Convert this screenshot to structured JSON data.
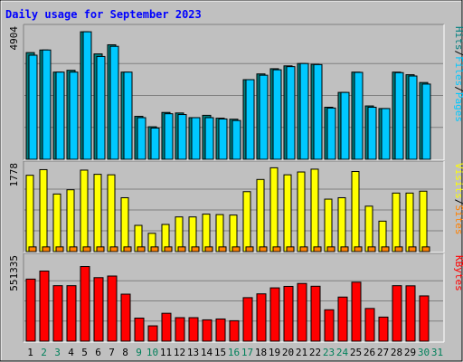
{
  "chart_data": {
    "type": "bar",
    "title": "Daily usage for September 2023",
    "days": [
      "1",
      "2",
      "3",
      "4",
      "5",
      "6",
      "7",
      "8",
      "9",
      "10",
      "11",
      "12",
      "13",
      "14",
      "15",
      "16",
      "17",
      "18",
      "19",
      "20",
      "21",
      "22",
      "23",
      "24",
      "25",
      "26",
      "27",
      "28",
      "29",
      "30",
      "31"
    ],
    "weekend_days": [
      2,
      3,
      9,
      10,
      16,
      17,
      23,
      24,
      30,
      31
    ],
    "panels": [
      {
        "id": "hits",
        "max_label": "4904",
        "ymax": 4904,
        "legend": [
          "Pages",
          "Files",
          "Hits"
        ],
        "series": [
          {
            "name": "Pages",
            "values": [
              null,
              null,
              null,
              null,
              null,
              null,
              null,
              null,
              null,
              null,
              null,
              null,
              null,
              null,
              null,
              null,
              null,
              null,
              null,
              null,
              null,
              null,
              null,
              null,
              null,
              null,
              null,
              null,
              null,
              null,
              null
            ]
          },
          {
            "name": "Hits",
            "values": [
              4100,
              4200,
              3350,
              3420,
              4900,
              4050,
              4400,
              3350,
              1650,
              1250,
              1800,
              1780,
              1600,
              1690,
              1580,
              1540,
              3060,
              3280,
              3480,
              3590,
              3680,
              3650,
              2000,
              2570,
              3350,
              2050,
              1950,
              3350,
              3250,
              2950,
              null
            ]
          },
          {
            "name": "Files",
            "values": [
              4000,
              4200,
              3350,
              3350,
              4900,
              3950,
              4340,
              3350,
              1600,
              1200,
              1750,
              1720,
              1600,
              1600,
              1550,
              1490,
              3060,
              3230,
              3440,
              3560,
              3680,
              3640,
              1970,
              2570,
              3340,
              2000,
              1950,
              3330,
              3200,
              2890,
              null
            ]
          }
        ]
      },
      {
        "id": "visits",
        "max_label": "1778",
        "ymax": 1778,
        "legend": [
          "Sites",
          "Visits"
        ],
        "series": [
          {
            "name": "Visits",
            "values": [
              1630,
              1750,
              1230,
              1320,
              1740,
              1650,
              1640,
              1150,
              560,
              390,
              580,
              740,
              740,
              800,
              790,
              780,
              1280,
              1540,
              1790,
              1640,
              1700,
              1760,
              1120,
              1150,
              1710,
              970,
              650,
              1250,
              1250,
              1290,
              null
            ]
          },
          {
            "name": "Sites",
            "values": [
              100,
              100,
              100,
              100,
              100,
              100,
              100,
              100,
              100,
              100,
              100,
              100,
              100,
              100,
              100,
              100,
              100,
              100,
              100,
              100,
              100,
              100,
              100,
              100,
              100,
              100,
              100,
              100,
              100,
              100,
              null
            ]
          }
        ]
      },
      {
        "id": "kbytes",
        "max_label": "551335",
        "ymax": 551335,
        "legend": [
          "KBytes"
        ],
        "series": [
          {
            "name": "KBytes",
            "values": [
              425000,
              480000,
              380000,
              380000,
              511000,
              435000,
              446000,
              322000,
              158000,
              105000,
              191000,
              161000,
              161000,
              146000,
              152000,
              140000,
              298000,
              324000,
              365000,
              375000,
              395000,
              376000,
              215000,
              302000,
              404000,
              224000,
              165000,
              380000,
              379000,
              310000,
              null
            ]
          }
        ]
      }
    ]
  },
  "colors": {
    "background": "#c0c0c0",
    "title": "#0000ff",
    "pages": "#00c8ff",
    "files": "#00c8ff",
    "hits": "#007f7f",
    "visits": "#ffff00",
    "sites": "#ff8000",
    "kbytes": "#ff0000",
    "weekday_label": "#000000",
    "weekend_label": "#00805a"
  }
}
